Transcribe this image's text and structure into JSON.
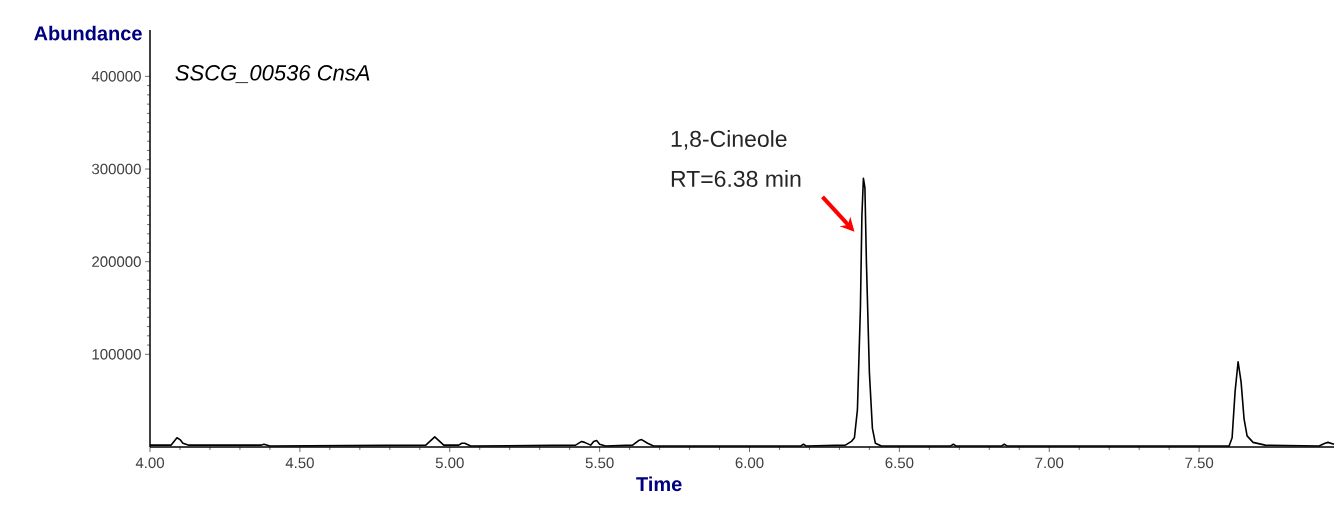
{
  "chart_data": {
    "type": "line",
    "title": "SSCG_00536 CnsA",
    "xlabel": "Time",
    "ylabel": "Abundance",
    "xlim": [
      4.0,
      7.95
    ],
    "ylim": [
      0,
      450000
    ],
    "xticks": [
      {
        "value": 4.0,
        "label": "4.00"
      },
      {
        "value": 4.5,
        "label": "4.50"
      },
      {
        "value": 5.0,
        "label": "5.00"
      },
      {
        "value": 5.5,
        "label": "5.50"
      },
      {
        "value": 6.0,
        "label": "6.00"
      },
      {
        "value": 6.5,
        "label": "6.50"
      },
      {
        "value": 7.0,
        "label": "7.00"
      },
      {
        "value": 7.5,
        "label": "7.50"
      }
    ],
    "yticks": [
      100000,
      200000,
      300000,
      400000
    ],
    "grid": false,
    "marker": "none",
    "line_style": "solid",
    "annotations": [
      "1,8-Cineole",
      "RT=6.38 min"
    ],
    "series": [
      {
        "color": "#000000",
        "x": [
          4.0,
          4.07,
          4.08,
          4.09,
          4.1,
          4.11,
          4.13,
          4.37,
          4.38,
          4.4,
          4.92,
          4.94,
          4.95,
          4.96,
          4.98,
          5.03,
          5.04,
          5.05,
          5.07,
          5.42,
          5.44,
          5.45,
          5.47,
          5.48,
          5.49,
          5.5,
          5.52,
          5.61,
          5.63,
          5.64,
          5.66,
          5.68,
          6.17,
          6.18,
          6.19,
          6.32,
          6.34,
          6.35,
          6.36,
          6.37,
          6.375,
          6.38,
          6.385,
          6.39,
          6.4,
          6.41,
          6.42,
          6.44,
          6.67,
          6.68,
          6.69,
          6.84,
          6.85,
          6.86,
          7.6,
          7.61,
          7.62,
          7.63,
          7.64,
          7.65,
          7.66,
          7.68,
          7.72,
          7.9,
          7.92,
          7.93,
          7.95
        ],
        "values": [
          2000,
          2000,
          6000,
          10000,
          8000,
          4000,
          2000,
          2000,
          3000,
          1000,
          2000,
          8000,
          11000,
          8000,
          2000,
          2000,
          4000,
          4000,
          1000,
          2000,
          6000,
          5000,
          2000,
          6000,
          7000,
          3000,
          1000,
          2000,
          7000,
          8000,
          4000,
          1000,
          1000,
          3000,
          1000,
          2000,
          6000,
          10000,
          40000,
          150000,
          250000,
          290000,
          280000,
          200000,
          80000,
          20000,
          4000,
          1000,
          1000,
          3000,
          1000,
          1000,
          3000,
          1000,
          1000,
          10000,
          60000,
          92000,
          70000,
          30000,
          12000,
          5000,
          2000,
          1000,
          4000,
          5000,
          3000
        ]
      }
    ]
  }
}
